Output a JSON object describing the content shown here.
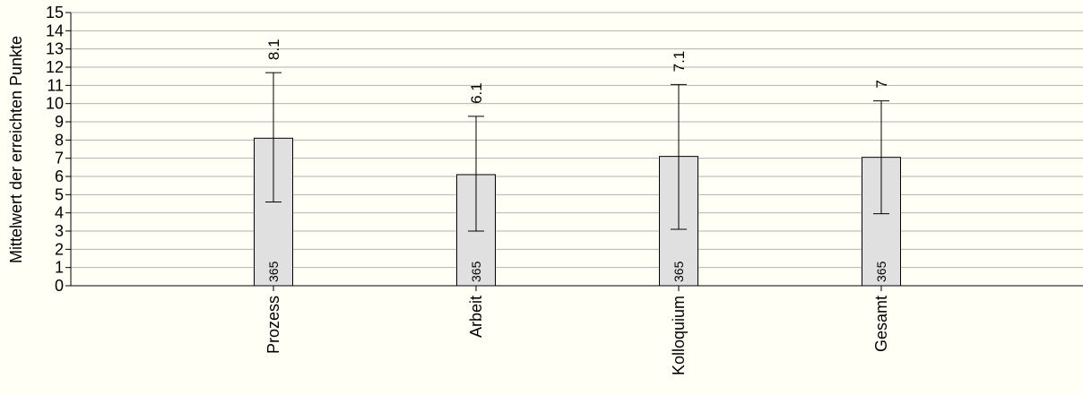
{
  "chart_data": {
    "type": "bar",
    "categories": [
      "Prozess",
      "Arbeit",
      "Kolloquium",
      "Gesamt"
    ],
    "values": [
      8.1,
      6.1,
      7.1,
      7.05
    ],
    "value_labels": [
      "8.1",
      "6.1",
      "7.1",
      "7"
    ],
    "error_lower": [
      4.6,
      3.0,
      3.1,
      3.95
    ],
    "error_upper": [
      11.7,
      9.3,
      11.05,
      10.15
    ],
    "n": [
      "365",
      "365",
      "365",
      "365"
    ],
    "ylabel": "Mittelwert der erreichten Punkte",
    "xlabel": "",
    "ylim": [
      0,
      15
    ],
    "yticks": [
      "0",
      "1",
      "2",
      "3",
      "4",
      "5",
      "6",
      "7",
      "8",
      "9",
      "10",
      "11",
      "12",
      "13",
      "14",
      "15"
    ],
    "grid": true,
    "legend": "none",
    "colors": {
      "background": "#fffff5",
      "bar_fill": "#e0e0e0",
      "bar_stroke": "#000000",
      "grid": "#b3b3b3"
    }
  }
}
